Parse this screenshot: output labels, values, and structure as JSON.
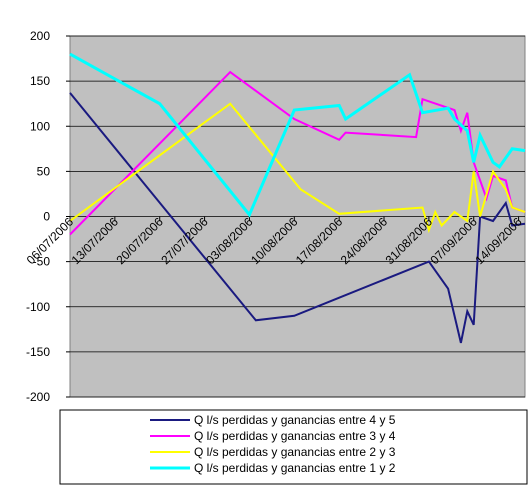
{
  "chart_data": {
    "type": "line",
    "ylim": [
      -200,
      200
    ],
    "yticks": [
      -200,
      -150,
      -100,
      -50,
      0,
      50,
      100,
      150,
      200
    ],
    "grid": true,
    "xlim": [
      "06/07/2006",
      "15/09/2006"
    ],
    "xticks": [
      "06/07/2006",
      "13/07/2006",
      "20/07/2006",
      "27/07/2006",
      "03/08/2006",
      "10/08/2006",
      "17/08/2006",
      "24/08/2006",
      "31/08/2006",
      "07/09/2006",
      "14/09/2006"
    ],
    "legend": "bottom",
    "series": [
      {
        "name": "Q l/s  perdidas y ganancias entre 4 y 5",
        "color": "#1a1a80",
        "x": [
          "06/07/2006",
          "04/08/2006",
          "10/08/2006",
          "17/08/2006",
          "31/08/2006",
          "03/09/2006",
          "05/09/2006",
          "06/09/2006",
          "07/09/2006",
          "08/09/2006",
          "10/09/2006",
          "12/09/2006",
          "13/09/2006",
          "15/09/2006"
        ],
        "values": [
          137,
          -115,
          -110,
          -90,
          -50,
          -80,
          -140,
          -105,
          -120,
          0,
          -5,
          15,
          -10,
          -8
        ]
      },
      {
        "name": "Q l/s  perdidas y ganancias entre 3 y 4",
        "color": "#ff00ff",
        "x": [
          "06/07/2006",
          "31/07/2006",
          "10/08/2006",
          "17/08/2006",
          "18/08/2006",
          "29/08/2006",
          "30/08/2006",
          "04/09/2006",
          "05/09/2006",
          "06/09/2006",
          "07/09/2006",
          "09/09/2006",
          "10/09/2006",
          "12/09/2006",
          "13/09/2006",
          "15/09/2006"
        ],
        "values": [
          -20,
          160,
          108,
          85,
          93,
          88,
          130,
          118,
          95,
          115,
          60,
          20,
          45,
          40,
          10,
          5
        ]
      },
      {
        "name": "Q l/s  perdidas y ganancias entre 2 y 3",
        "color": "#ffff00",
        "x": [
          "06/07/2006",
          "31/07/2006",
          "11/08/2006",
          "17/08/2006",
          "30/08/2006",
          "31/08/2006",
          "01/09/2006",
          "02/09/2006",
          "04/09/2006",
          "06/09/2006",
          "07/09/2006",
          "08/09/2006",
          "10/09/2006",
          "12/09/2006",
          "13/09/2006",
          "15/09/2006"
        ],
        "values": [
          -5,
          125,
          30,
          3,
          10,
          -15,
          5,
          -10,
          5,
          -5,
          50,
          0,
          50,
          30,
          10,
          5
        ]
      },
      {
        "name": "Q l/s  perdidas y ganancias entre 1 y 2",
        "color": "#00ffff",
        "x": [
          "06/07/2006",
          "20/07/2006",
          "03/08/2006",
          "10/08/2006",
          "17/08/2006",
          "18/08/2006",
          "28/08/2006",
          "30/08/2006",
          "03/09/2006",
          "04/09/2006",
          "06/09/2006",
          "07/09/2006",
          "08/09/2006",
          "10/09/2006",
          "11/09/2006",
          "13/09/2006",
          "15/09/2006"
        ],
        "values": [
          180,
          125,
          2,
          118,
          123,
          108,
          157,
          115,
          120,
          108,
          95,
          60,
          90,
          60,
          55,
          75,
          73
        ]
      }
    ]
  }
}
